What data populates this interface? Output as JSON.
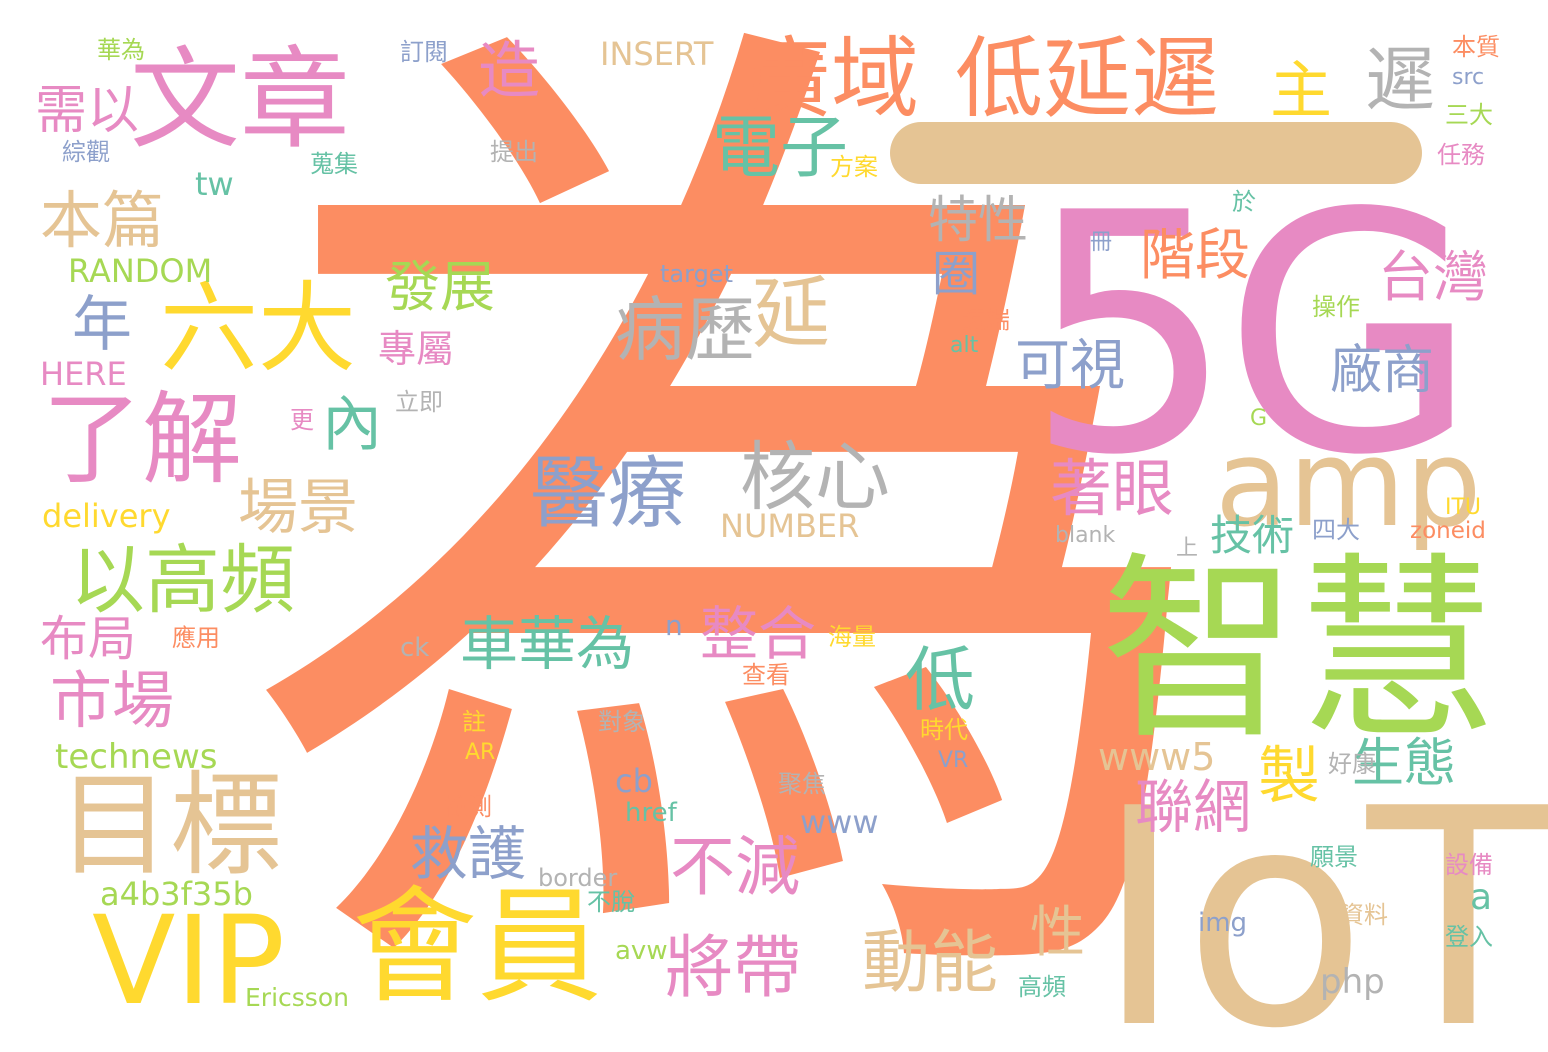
{
  "palette": {
    "orange": "#fc8d62",
    "pink": "#e78ac3",
    "green": "#a6d854",
    "tan": "#e5c494",
    "yellow": "#ffd92f",
    "blue": "#8da0cb",
    "teal": "#66c2a5",
    "gray": "#b3b3b3"
  },
  "words": [
    {
      "text": "為",
      "color": "#fc8d62"
    },
    {
      "text": "5G",
      "color": "#e78ac3"
    },
    {
      "text": "IoT",
      "color": "#e5c494"
    },
    {
      "text": "智慧",
      "color": "#a6d854"
    },
    {
      "text": "amp",
      "color": "#e5c494"
    },
    {
      "text": "VIP",
      "color": "#ffd92f"
    },
    {
      "text": "會員",
      "color": "#ffd92f"
    },
    {
      "text": "目標",
      "color": "#e5c494"
    },
    {
      "text": "文章",
      "color": "#e78ac3"
    },
    {
      "text": "廣域",
      "color": "#fc8d62"
    },
    {
      "text": "低延遲",
      "color": "#fc8d62"
    },
    {
      "text": "了解",
      "color": "#e78ac3"
    },
    {
      "text": "六大",
      "color": "#ffd92f"
    },
    {
      "text": "以高頻",
      "color": "#a6d854"
    },
    {
      "text": "醫療",
      "color": "#8da0cb"
    },
    {
      "text": "核心",
      "color": "#b3b3b3"
    },
    {
      "text": "病歷",
      "color": "#b3b3b3"
    },
    {
      "text": "延",
      "color": "#e5c494"
    },
    {
      "text": "電子",
      "color": "#66c2a5"
    },
    {
      "text": "遲",
      "color": "#b3b3b3"
    },
    {
      "text": "主",
      "color": "#ffd92f"
    },
    {
      "text": "本篇",
      "color": "#e5c494"
    },
    {
      "text": "年",
      "color": "#8da0cb"
    },
    {
      "text": "市場",
      "color": "#e78ac3"
    },
    {
      "text": "布局",
      "color": "#e78ac3"
    },
    {
      "text": "需以",
      "color": "#e78ac3"
    },
    {
      "text": "造",
      "color": "#e78ac3"
    },
    {
      "text": "特性",
      "color": "#b3b3b3"
    },
    {
      "text": "階段",
      "color": "#fc8d62"
    },
    {
      "text": "台灣",
      "color": "#e78ac3"
    },
    {
      "text": "廠商",
      "color": "#8da0cb"
    },
    {
      "text": "可視",
      "color": "#8da0cb"
    },
    {
      "text": "著眼",
      "color": "#e78ac3"
    },
    {
      "text": "發展",
      "color": "#a6d854"
    },
    {
      "text": "專屬",
      "color": "#e78ac3"
    },
    {
      "text": "內",
      "color": "#66c2a5"
    },
    {
      "text": "場景",
      "color": "#e5c494"
    },
    {
      "text": "車華為",
      "color": "#66c2a5"
    },
    {
      "text": "整合",
      "color": "#e78ac3"
    },
    {
      "text": "低",
      "color": "#66c2a5"
    },
    {
      "text": "救護",
      "color": "#8da0cb"
    },
    {
      "text": "不減",
      "color": "#e78ac3"
    },
    {
      "text": "將帶",
      "color": "#e78ac3"
    },
    {
      "text": "動能",
      "color": "#e5c494"
    },
    {
      "text": "性",
      "color": "#e5c494"
    },
    {
      "text": "聯網",
      "color": "#e78ac3"
    },
    {
      "text": "製",
      "color": "#ffd92f"
    },
    {
      "text": "生態",
      "color": "#66c2a5"
    },
    {
      "text": "技術",
      "color": "#66c2a5"
    },
    {
      "text": "圈",
      "color": "#8da0cb"
    },
    {
      "text": "www5",
      "color": "#e5c494"
    },
    {
      "text": "www",
      "color": "#8da0cb"
    },
    {
      "text": "technews",
      "color": "#a6d854"
    },
    {
      "text": "a4b3f35b",
      "color": "#a6d854"
    },
    {
      "text": "delivery",
      "color": "#ffd92f"
    },
    {
      "text": "HERE",
      "color": "#e78ac3"
    },
    {
      "text": "RANDOM",
      "color": "#a6d854"
    },
    {
      "text": "tw",
      "color": "#66c2a5"
    },
    {
      "text": "INSERT",
      "color": "#e5c494"
    },
    {
      "text": "NUMBER",
      "color": "#e5c494"
    },
    {
      "text": "target",
      "color": "#8da0cb"
    },
    {
      "text": "php",
      "color": "#b3b3b3"
    },
    {
      "text": "a",
      "color": "#66c2a5"
    },
    {
      "text": "n",
      "color": "#8da0cb"
    },
    {
      "text": "cb",
      "color": "#8da0cb"
    },
    {
      "text": "ck",
      "color": "#b3b3b3"
    },
    {
      "text": "href",
      "color": "#66c2a5"
    },
    {
      "text": "border",
      "color": "#b3b3b3"
    },
    {
      "text": "avw",
      "color": "#a6d854"
    },
    {
      "text": "Ericsson",
      "color": "#a6d854"
    },
    {
      "text": "img",
      "color": "#8da0cb"
    },
    {
      "text": "blank",
      "color": "#b3b3b3"
    },
    {
      "text": "zoneid",
      "color": "#fc8d62"
    },
    {
      "text": "ITU",
      "color": "#ffd92f"
    },
    {
      "text": "src",
      "color": "#8da0cb"
    },
    {
      "text": "alt",
      "color": "#66c2a5"
    },
    {
      "text": "G",
      "color": "#a6d854"
    },
    {
      "text": "AR",
      "color": "#ffd92f"
    },
    {
      "text": "VR",
      "color": "#8da0cb"
    },
    {
      "text": "華為",
      "color": "#a6d854"
    },
    {
      "text": "訂閱",
      "color": "#8da0cb"
    },
    {
      "text": "綜觀",
      "color": "#8da0cb"
    },
    {
      "text": "提出",
      "color": "#b3b3b3"
    },
    {
      "text": "蒐集",
      "color": "#66c2a5"
    },
    {
      "text": "方案",
      "color": "#ffd92f"
    },
    {
      "text": "本質",
      "color": "#fc8d62"
    },
    {
      "text": "三大",
      "color": "#a6d854"
    },
    {
      "text": "任務",
      "color": "#e78ac3"
    },
    {
      "text": "於",
      "color": "#66c2a5"
    },
    {
      "text": "冊",
      "color": "#8da0cb"
    },
    {
      "text": "遠端",
      "color": "#fc8d62"
    },
    {
      "text": "操作",
      "color": "#a6d854"
    },
    {
      "text": "立即",
      "color": "#b3b3b3"
    },
    {
      "text": "更",
      "color": "#e78ac3"
    },
    {
      "text": "應用",
      "color": "#fc8d62"
    },
    {
      "text": "海量",
      "color": "#ffd92f"
    },
    {
      "text": "查看",
      "color": "#fc8d62"
    },
    {
      "text": "對象",
      "color": "#b3b3b3"
    },
    {
      "text": "註",
      "color": "#ffd92f"
    },
    {
      "text": "時代",
      "color": "#ffd92f"
    },
    {
      "text": "聚焦",
      "color": "#b3b3b3"
    },
    {
      "text": "檢測",
      "color": "#fc8d62"
    },
    {
      "text": "不脫",
      "color": "#66c2a5"
    },
    {
      "text": "好康",
      "color": "#b3b3b3"
    },
    {
      "text": "願景",
      "color": "#66c2a5"
    },
    {
      "text": "設備",
      "color": "#e78ac3"
    },
    {
      "text": "資料",
      "color": "#e5c494"
    },
    {
      "text": "登入",
      "color": "#66c2a5"
    },
    {
      "text": "高頻",
      "color": "#66c2a5"
    },
    {
      "text": "四大",
      "color": "#8da0cb"
    },
    {
      "text": "上",
      "color": "#b3b3b3"
    },
    {
      "text": "一",
      "color": "#e5c494"
    }
  ]
}
